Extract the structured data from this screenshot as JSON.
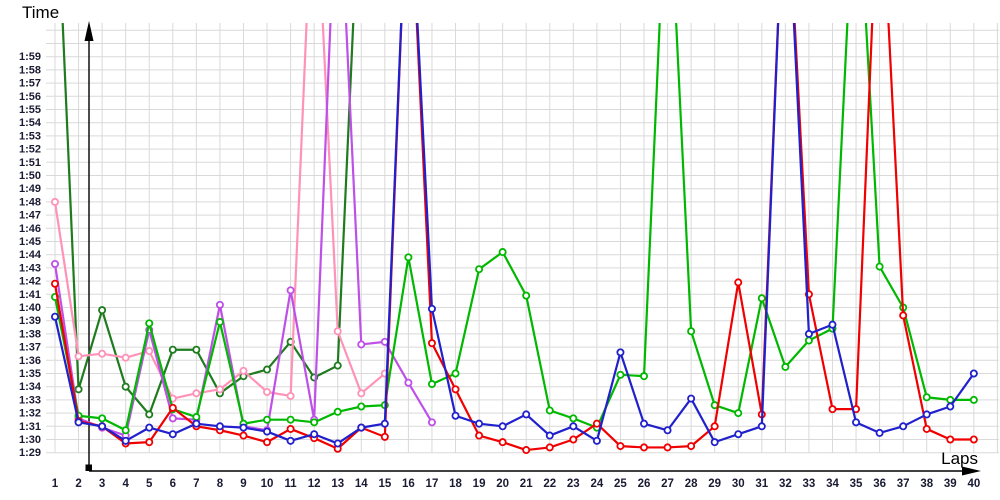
{
  "chart_data": {
    "type": "line",
    "xlabel": "Laps",
    "ylabel": "Time",
    "x_ticks": [
      1,
      2,
      3,
      4,
      5,
      6,
      7,
      8,
      9,
      10,
      11,
      12,
      13,
      14,
      15,
      16,
      17,
      18,
      19,
      20,
      21,
      22,
      23,
      24,
      25,
      26,
      27,
      28,
      29,
      30,
      31,
      32,
      33,
      34,
      35,
      36,
      37,
      38,
      39,
      40
    ],
    "y_ticks": [
      "1:29",
      "1:30",
      "1:31",
      "1:32",
      "1:33",
      "1:34",
      "1:35",
      "1:36",
      "1:37",
      "1:38",
      "1:39",
      "1:40",
      "1:41",
      "1:42",
      "1:43",
      "1:44",
      "1:45",
      "1:46",
      "1:47",
      "1:48",
      "1:49",
      "1:50",
      "1:51",
      "1:52",
      "1:53",
      "1:54",
      "1:55",
      "1:56",
      "1:57",
      "1:58",
      "1:59"
    ],
    "y_base_seconds": 89,
    "grid": true,
    "legend": "none",
    "offscale": 135,
    "series": [
      {
        "name": "dark-green",
        "color": "#1e7b1e",
        "values": [
          135,
          93.8,
          99.8,
          94.0,
          91.9,
          96.8,
          96.8,
          93.5,
          94.8,
          95.3,
          97.4,
          94.7,
          95.6,
          135,
          null,
          null,
          null,
          null,
          null,
          null,
          null,
          null,
          null,
          null,
          null,
          null,
          null,
          null,
          null,
          null,
          null,
          null,
          null,
          null,
          null,
          null,
          null,
          null,
          null,
          null
        ]
      },
      {
        "name": "pink",
        "color": "#ff92b8",
        "values": [
          108.0,
          96.3,
          96.5,
          96.2,
          96.7,
          93.1,
          93.5,
          93.8,
          95.2,
          93.6,
          93.3,
          135,
          98.2,
          93.5,
          95.0,
          null,
          null,
          null,
          null,
          null,
          null,
          null,
          null,
          null,
          null,
          null,
          null,
          null,
          null,
          null,
          null,
          null,
          null,
          null,
          null,
          null,
          null,
          null,
          null,
          null
        ]
      },
      {
        "name": "violet",
        "color": "#be50e8",
        "values": [
          103.3,
          91.6,
          90.9,
          90.3,
          98.3,
          91.6,
          91.5,
          100.2,
          91.0,
          90.7,
          101.3,
          91.5,
          135,
          97.2,
          97.4,
          94.3,
          91.3,
          null,
          null,
          null,
          null,
          null,
          null,
          null,
          null,
          null,
          null,
          null,
          null,
          null,
          null,
          null,
          null,
          null,
          null,
          null,
          null,
          null,
          null,
          null
        ]
      },
      {
        "name": "green",
        "color": "#00b800",
        "values": [
          100.8,
          91.8,
          91.6,
          90.7,
          98.8,
          92.3,
          91.7,
          98.9,
          91.2,
          91.5,
          91.5,
          91.3,
          92.1,
          92.5,
          92.6,
          103.8,
          94.2,
          95.0,
          102.9,
          104.2,
          100.9,
          92.2,
          91.6,
          90.9,
          94.9,
          94.8,
          135,
          98.2,
          92.6,
          92.0,
          100.7,
          95.5,
          97.5,
          98.4,
          135,
          103.1,
          100.0,
          93.2,
          93.0,
          93.0
        ]
      },
      {
        "name": "red",
        "color": "#f00000",
        "values": [
          101.8,
          91.4,
          91.0,
          89.7,
          89.8,
          92.4,
          91.0,
          90.7,
          90.3,
          89.8,
          90.8,
          90.1,
          89.3,
          90.9,
          90.2,
          135,
          97.3,
          93.8,
          90.3,
          89.8,
          89.2,
          89.4,
          90.0,
          91.2,
          89.5,
          89.4,
          89.4,
          89.5,
          91.0,
          101.9,
          91.9,
          135,
          101.0,
          92.3,
          92.3,
          135,
          99.4,
          90.8,
          90.0,
          90.0
        ]
      },
      {
        "name": "blue",
        "color": "#2020cc",
        "values": [
          99.3,
          91.3,
          91.0,
          89.9,
          90.9,
          90.4,
          91.2,
          91.0,
          90.9,
          90.6,
          89.9,
          90.4,
          89.7,
          90.9,
          91.2,
          135,
          99.9,
          91.8,
          91.2,
          91.0,
          91.9,
          90.3,
          91.0,
          89.9,
          96.6,
          91.2,
          90.7,
          93.1,
          89.8,
          90.4,
          91.0,
          135,
          98.0,
          98.7,
          91.3,
          90.5,
          91.0,
          91.9,
          92.5,
          95.0
        ]
      }
    ]
  },
  "axes": {
    "y_title": "Time",
    "x_title": "Laps"
  },
  "style": {
    "grid_color": "#d9d9d9",
    "axis_color": "#000000",
    "tick_color": "#1a1a33",
    "background": "#ffffff"
  }
}
